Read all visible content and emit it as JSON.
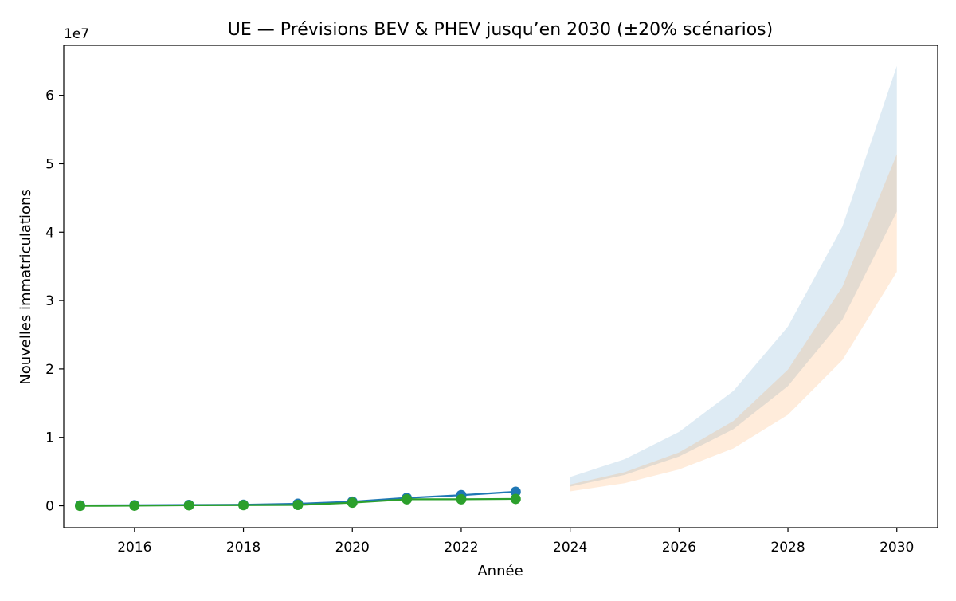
{
  "chart_data": {
    "type": "line",
    "title": "UE — Prévisions BEV & PHEV jusqu’en 2030 (±20% scénarios)",
    "xlabel": "Année",
    "ylabel": "Nouvelles immatriculations",
    "y_scale_label": "1e7",
    "xlim": [
      2014.7,
      2030.75
    ],
    "ylim": [
      -3200000,
      67300000
    ],
    "x_ticks": [
      2016,
      2018,
      2020,
      2022,
      2024,
      2026,
      2028,
      2030
    ],
    "x_tick_labels": [
      "2016",
      "2018",
      "2020",
      "2022",
      "2024",
      "2026",
      "2028",
      "2030"
    ],
    "y_ticks": [
      0,
      10000000,
      20000000,
      30000000,
      40000000,
      50000000,
      60000000
    ],
    "y_tick_labels": [
      "0",
      "1",
      "2",
      "3",
      "4",
      "5",
      "6"
    ],
    "grid": false,
    "series": [
      {
        "color": "#1f77b4",
        "x": [
          2015,
          2016,
          2017,
          2018,
          2019,
          2020,
          2021,
          2022,
          2023
        ],
        "values": [
          50000,
          80000,
          120000,
          150000,
          300000,
          600000,
          1150000,
          1550000,
          2050000
        ]
      },
      {
        "color": "#2ca02c",
        "x": [
          2015,
          2016,
          2017,
          2018,
          2019,
          2020,
          2021,
          2022,
          2023
        ],
        "values": [
          -20000,
          10000,
          70000,
          90000,
          120000,
          450000,
          950000,
          950000,
          1000000
        ]
      }
    ],
    "bands": [
      {
        "color": "#1f77b4",
        "opacity": 0.15,
        "x": [
          2024,
          2025,
          2026,
          2027,
          2028,
          2029,
          2030
        ],
        "lower": [
          2800000,
          4500000,
          7200000,
          11200000,
          17500000,
          27200000,
          43000000
        ],
        "upper": [
          4200000,
          6800000,
          10800000,
          16800000,
          26200000,
          40800000,
          64300000
        ]
      },
      {
        "color": "#ff7f0e",
        "opacity": 0.15,
        "x": [
          2024,
          2025,
          2026,
          2027,
          2028,
          2029,
          2030
        ],
        "lower": [
          2100000,
          3300000,
          5300000,
          8400000,
          13300000,
          21300000,
          34200000
        ],
        "upper": [
          3100000,
          4900000,
          7800000,
          12400000,
          19900000,
          32000000,
          51400000
        ]
      }
    ]
  }
}
